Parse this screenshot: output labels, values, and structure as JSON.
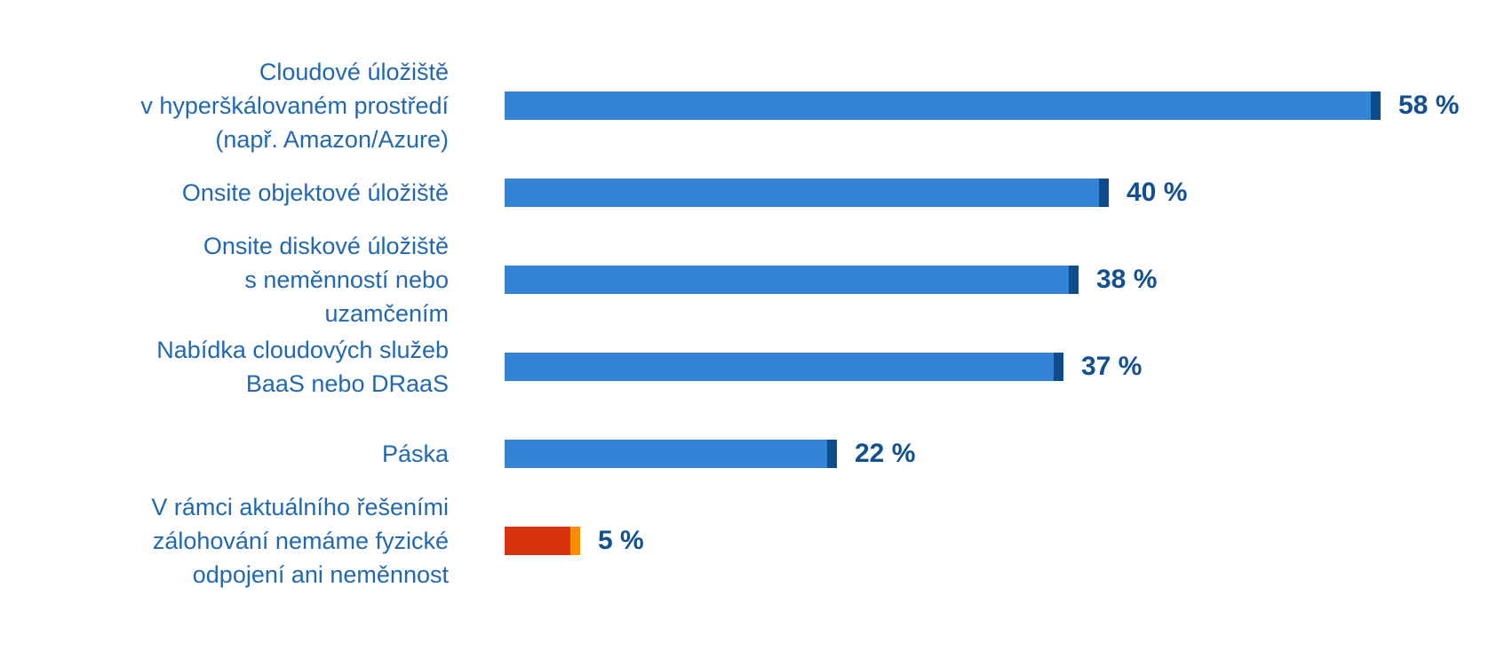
{
  "chart_data": {
    "type": "bar",
    "orientation": "horizontal",
    "title": "",
    "xlabel": "",
    "ylabel": "",
    "xlim": [
      0,
      60
    ],
    "grid": false,
    "legend": null,
    "unit": "%",
    "colors": {
      "bar": "#3384d5",
      "bar_tip": "#0f4c8c",
      "highlight_bar": "#d7330c",
      "highlight_tip": "#fb8c00",
      "category_label_text": "#2268ae",
      "value_label_text": "#12508f",
      "background": "#ffffff"
    },
    "categories": [
      "Cloudové úložiště v hyperškálovaném prostředí (např. Amazon/Azure)",
      "Onsite objektové úložiště",
      "Onsite diskové úložiště s neměnností nebo uzamčením",
      "Nabídka cloudových služeb BaaS nebo DRaaS",
      "Páska",
      "V rámci aktuálního řešeními zálohování nemáme fyzické odpojení ani neměnnost"
    ],
    "rows": [
      {
        "label_lines": [
          "Cloudové úložiště",
          "v hyperškálovaném prostředí",
          "(např. Amazon/Azure)"
        ],
        "value": 58,
        "value_label": "58 %",
        "highlight": false
      },
      {
        "label_lines": [
          "Onsite objektové úložiště"
        ],
        "value": 40,
        "value_label": "40 %",
        "highlight": false
      },
      {
        "label_lines": [
          "Onsite diskové úložiště",
          "s neměnností nebo",
          "uzamčením"
        ],
        "value": 38,
        "value_label": "38 %",
        "highlight": false
      },
      {
        "label_lines": [
          "Nabídka cloudových služeb",
          "BaaS nebo DRaaS"
        ],
        "value": 37,
        "value_label": "37 %",
        "highlight": false
      },
      {
        "label_lines": [
          "Páska"
        ],
        "value": 22,
        "value_label": "22 %",
        "highlight": false
      },
      {
        "label_lines": [
          "V rámci aktuálního řešeními",
          "zálohování nemáme fyzické",
          "odpojení ani neměnnost"
        ],
        "value": 5,
        "value_label": "5 %",
        "highlight": true
      }
    ],
    "values": [
      58,
      40,
      38,
      37,
      22,
      5
    ]
  }
}
